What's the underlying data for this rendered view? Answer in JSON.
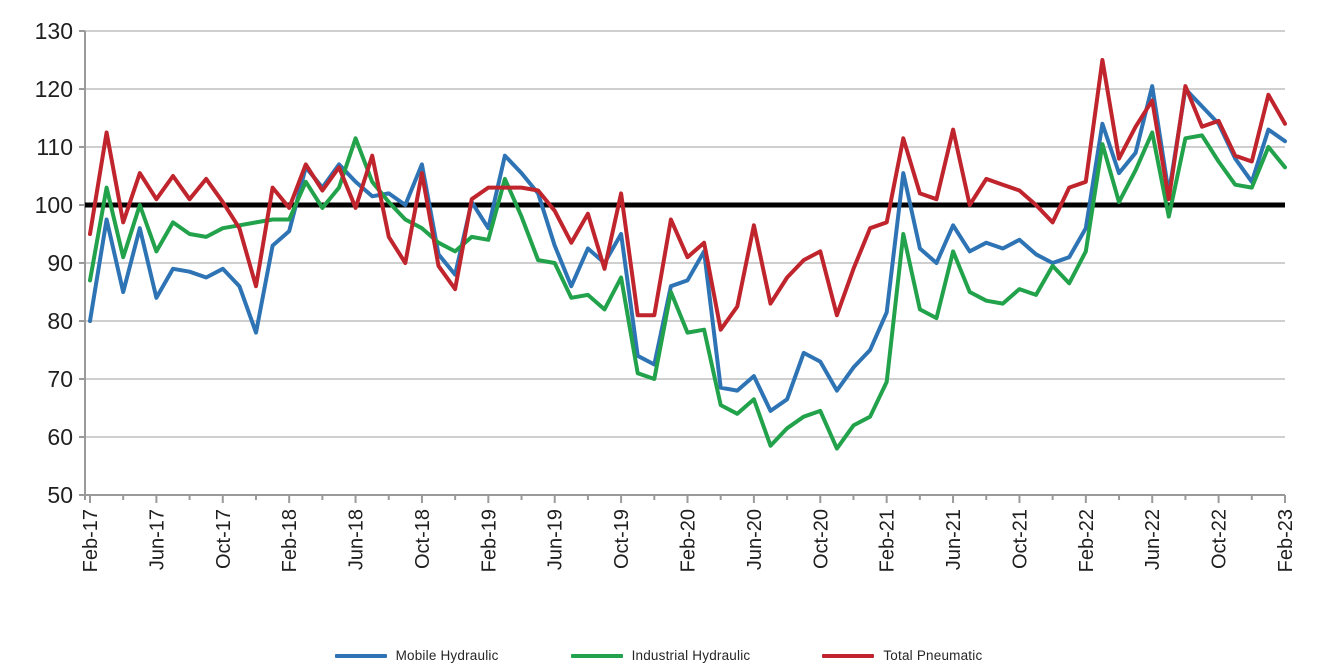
{
  "page": {
    "background": "#FFFFFF"
  },
  "chart_data": {
    "type": "line",
    "title": "",
    "xlabel": "",
    "ylabel": "",
    "ylim": [
      50,
      130
    ],
    "y_ticks": [
      50,
      60,
      70,
      80,
      90,
      100,
      110,
      120,
      130
    ],
    "grid": "horizontal",
    "grid_color": "#BFBFBF",
    "axis_color": "#9A9A9A",
    "text_color": "#1F1F1F",
    "reference_line": {
      "value": 100,
      "color": "#000000"
    },
    "legend_position": "bottom",
    "x_label_every": 4,
    "x": [
      "Feb-17",
      "Mar-17",
      "Apr-17",
      "May-17",
      "Jun-17",
      "Jul-17",
      "Aug-17",
      "Sep-17",
      "Oct-17",
      "Nov-17",
      "Dec-17",
      "Jan-18",
      "Feb-18",
      "Mar-18",
      "Apr-18",
      "May-18",
      "Jun-18",
      "Jul-18",
      "Aug-18",
      "Sep-18",
      "Oct-18",
      "Nov-18",
      "Dec-18",
      "Jan-19",
      "Feb-19",
      "Mar-19",
      "Apr-19",
      "May-19",
      "Jun-19",
      "Jul-19",
      "Aug-19",
      "Sep-19",
      "Oct-19",
      "Nov-19",
      "Dec-19",
      "Jan-20",
      "Feb-20",
      "Mar-20",
      "Apr-20",
      "May-20",
      "Jun-20",
      "Jul-20",
      "Aug-20",
      "Sep-20",
      "Oct-20",
      "Nov-20",
      "Dec-20",
      "Jan-21",
      "Feb-21",
      "Mar-21",
      "Apr-21",
      "May-21",
      "Jun-21",
      "Jul-21",
      "Aug-21",
      "Sep-21",
      "Oct-21",
      "Nov-21",
      "Dec-21",
      "Jan-22",
      "Feb-22",
      "Mar-22",
      "Apr-22",
      "May-22",
      "Jun-22",
      "Jul-22",
      "Aug-22",
      "Sep-22",
      "Oct-22",
      "Nov-22",
      "Dec-22",
      "Jan-23",
      "Feb-23"
    ],
    "x_tick_labels": [
      "Feb-17",
      "Jun-17",
      "Oct-17",
      "Feb-18",
      "Jun-18",
      "Oct-18",
      "Feb-19",
      "Jun-19",
      "Oct-19",
      "Feb-20",
      "Jun-20",
      "Oct-20",
      "Feb-21",
      "Jun-21",
      "Oct-21",
      "Feb-22",
      "Jun-22",
      "Oct-22",
      "Feb-23"
    ],
    "series": [
      {
        "name": "Mobile Hydraulic",
        "color": "#2E74B5",
        "values": [
          80,
          97.5,
          85,
          96,
          84,
          89,
          88.5,
          87.5,
          89,
          86,
          78,
          93,
          95.5,
          106.5,
          103,
          107,
          104,
          101.5,
          102,
          100,
          107,
          91.5,
          88,
          100.5,
          96,
          108.5,
          105.5,
          102,
          93,
          86,
          92.5,
          90,
          95,
          74,
          72.5,
          86,
          87,
          92,
          68.5,
          68,
          70.5,
          64.5,
          66.5,
          74.5,
          73,
          68,
          72,
          75,
          81.5,
          105.5,
          92.5,
          90,
          96.5,
          92,
          93.5,
          92.5,
          94,
          91.5,
          90,
          91,
          96,
          114,
          105.5,
          109,
          120.5,
          102,
          120,
          117,
          114,
          108,
          104,
          113,
          111
        ]
      },
      {
        "name": "Industrial Hydraulic",
        "color": "#22A24B",
        "values": [
          87,
          103,
          91,
          100,
          92,
          97,
          95,
          94.5,
          96,
          96.5,
          97,
          97.5,
          97.5,
          104,
          99.5,
          103,
          111.5,
          104,
          100.5,
          97.5,
          96,
          93.5,
          92,
          94.5,
          94,
          104.5,
          98,
          90.5,
          90,
          84,
          84.5,
          82,
          87.5,
          71,
          70,
          85,
          78,
          78.5,
          65.5,
          64,
          66.5,
          58.5,
          61.5,
          63.5,
          64.5,
          58,
          62,
          63.5,
          69.5,
          95,
          82,
          80.5,
          92,
          85,
          83.5,
          83,
          85.5,
          84.5,
          89.5,
          86.5,
          92,
          110.5,
          100.5,
          106,
          112.5,
          98,
          111.5,
          112,
          107.5,
          103.5,
          103,
          110,
          106.5
        ]
      },
      {
        "name": "Total Pneumatic",
        "color": "#C0242C",
        "values": [
          95,
          112.5,
          97,
          105.5,
          101,
          105,
          101,
          104.5,
          100.5,
          96,
          86,
          103,
          99.5,
          107,
          102.5,
          106.5,
          99.5,
          108.5,
          94.5,
          90,
          105.5,
          89.5,
          85.5,
          101,
          103,
          103,
          103,
          102.5,
          99,
          93.5,
          98.5,
          89,
          102,
          81,
          81,
          97.5,
          91,
          93.5,
          78.5,
          82.5,
          96.5,
          83,
          87.5,
          90.5,
          92,
          81,
          89,
          96,
          97,
          111.5,
          102,
          101,
          113,
          100,
          104.5,
          103.5,
          102.5,
          100,
          97,
          103,
          104,
          125,
          108,
          113.5,
          118,
          101,
          120.5,
          113.5,
          114.5,
          108.5,
          107.5,
          119,
          114
        ]
      }
    ]
  }
}
